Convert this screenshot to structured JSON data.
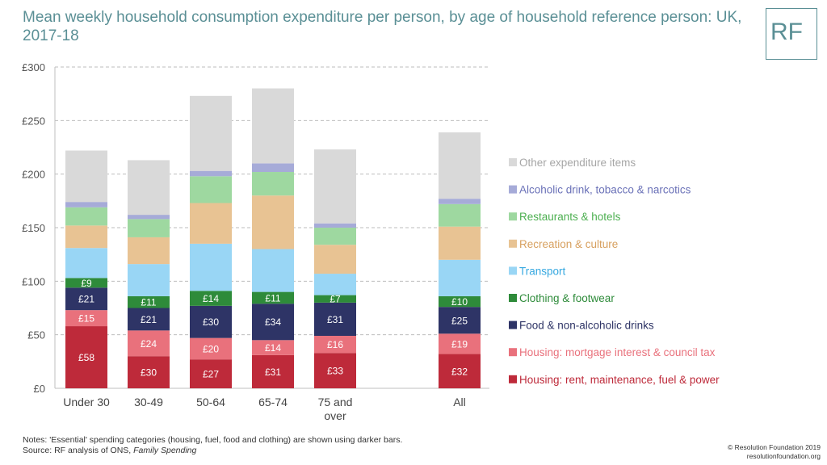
{
  "title": "Mean weekly household consumption expenditure per person, by age of household reference person: UK, 2017-18",
  "logo": "RF",
  "notes": {
    "line1": "Notes: 'Essential' spending categories (housing, fuel, food and clothing) are shown using darker bars.",
    "line2_prefix": "Source: RF analysis of ONS, ",
    "line2_italic": "Family Spending"
  },
  "credit": {
    "line1": "© Resolution Foundation 2019",
    "line2": "resolutionfoundation.org"
  },
  "chart_data": {
    "type": "bar",
    "stacked": true,
    "categories": [
      [
        "Under 30"
      ],
      [
        "30-49"
      ],
      [
        "50-64"
      ],
      [
        "65-74"
      ],
      [
        "75 and",
        "over"
      ],
      [
        "All"
      ]
    ],
    "ylim": [
      0,
      300
    ],
    "yticks": [
      0,
      50,
      100,
      150,
      200,
      250,
      300
    ],
    "ytick_labels": [
      "£0",
      "£50",
      "£100",
      "£150",
      "£200",
      "£250",
      "£300"
    ],
    "grid": true,
    "legend_position": "right",
    "series": [
      {
        "name": "Housing: rent, maintenance, fuel & power",
        "color": "#be2a3a",
        "values": [
          58,
          30,
          27,
          31,
          33,
          32
        ],
        "labels": [
          "£58",
          "£30",
          "£27",
          "£31",
          "£33",
          "£32"
        ]
      },
      {
        "name": "Housing: mortgage interest & council tax",
        "color": "#e9717c",
        "values": [
          15,
          24,
          20,
          14,
          16,
          19
        ],
        "labels": [
          "£15",
          "£24",
          "£20",
          "£14",
          "£16",
          "£19"
        ]
      },
      {
        "name": "Food & non-alcoholic drinks",
        "color": "#2e3466",
        "values": [
          21,
          21,
          30,
          34,
          31,
          25
        ],
        "labels": [
          "£21",
          "£21",
          "£30",
          "£34",
          "£31",
          "£25"
        ]
      },
      {
        "name": "Clothing & footwear",
        "color": "#2e8b3a",
        "values": [
          9,
          11,
          14,
          11,
          7,
          10
        ],
        "labels": [
          "£9",
          "£11",
          "£14",
          "£11",
          "£7",
          "£10"
        ]
      },
      {
        "name": "Transport",
        "color": "#99d6f5",
        "values": [
          28,
          30,
          44,
          40,
          20,
          34
        ]
      },
      {
        "name": "Recreation & culture",
        "color": "#e8c393",
        "values": [
          21,
          25,
          38,
          50,
          27,
          31
        ]
      },
      {
        "name": "Restaurants & hotels",
        "color": "#9ed8a0",
        "values": [
          17,
          17,
          25,
          22,
          16,
          21
        ]
      },
      {
        "name": "Alcoholic drink, tobacco & narcotics",
        "color": "#a6abd8",
        "values": [
          5,
          4,
          5,
          8,
          4,
          5
        ]
      },
      {
        "name": "Other expenditure items",
        "color": "#d9d9d9",
        "values": [
          48,
          51,
          70,
          70,
          69,
          62
        ]
      }
    ],
    "legend_label_colors": [
      "#a6a6a6",
      "#6b72b8",
      "#4caf50",
      "#d7a05f",
      "#36a8e0",
      "#2e8b3a",
      "#2e3466",
      "#e9717c",
      "#be2a3a"
    ]
  }
}
